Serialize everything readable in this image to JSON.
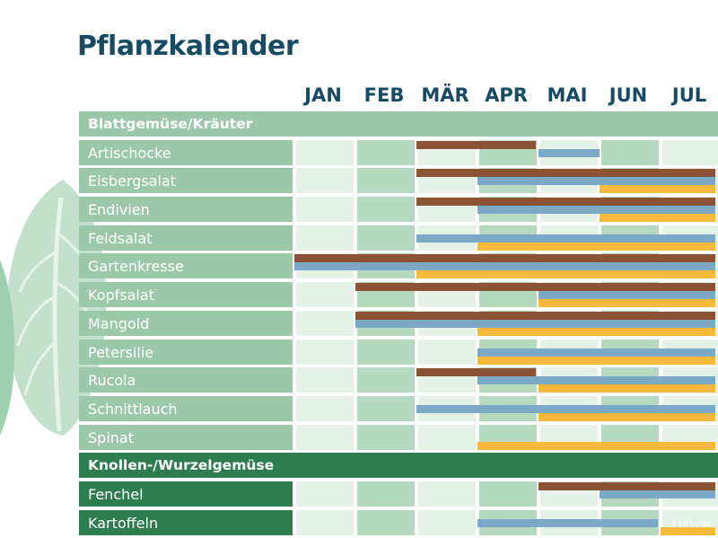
{
  "page": {
    "title": "Pflanzkalender",
    "watermark": "lidl.de"
  },
  "colors": {
    "sow": "#8b5236",
    "plant": "#7ba8c4",
    "harvest": "#f6b93b",
    "section_light": "#9cc8aa",
    "section_dark": "#2e7d4f",
    "label_light": "#9cc8aa",
    "label_dark": "#2e7d4f",
    "cell_light": "#e3f1e7",
    "cell_mid": "#b4d9bf",
    "title": "#174a63"
  },
  "chart_data": {
    "type": "table",
    "title": "Pflanzkalender",
    "months": [
      "JAN",
      "FEB",
      "MÄR",
      "APR",
      "MAI",
      "JUN",
      "JUL"
    ],
    "bar_kinds": [
      "sow",
      "plant",
      "harvest"
    ],
    "sections": [
      {
        "name": "Blattgemüse/Kräuter",
        "style": "light",
        "rows": [
          {
            "name": "Artischocke",
            "bars": [
              {
                "kind": "sow",
                "start": 3,
                "end": 4.95
              },
              {
                "kind": "plant",
                "start": 5,
                "end": 6
              }
            ]
          },
          {
            "name": "Eisbergsalat",
            "bars": [
              {
                "kind": "sow",
                "start": 3,
                "end": 7.9
              },
              {
                "kind": "plant",
                "start": 4,
                "end": 7.9
              },
              {
                "kind": "harvest",
                "start": 6,
                "end": 7.9
              }
            ]
          },
          {
            "name": "Endivien",
            "bars": [
              {
                "kind": "sow",
                "start": 3,
                "end": 7.9
              },
              {
                "kind": "plant",
                "start": 4,
                "end": 7.9
              },
              {
                "kind": "harvest",
                "start": 6,
                "end": 7.9
              }
            ]
          },
          {
            "name": "Feldsalat",
            "bars": [
              {
                "kind": "plant",
                "start": 3,
                "end": 7.9
              },
              {
                "kind": "harvest",
                "start": 4,
                "end": 7.9
              }
            ]
          },
          {
            "name": "Gartenkresse",
            "bars": [
              {
                "kind": "sow",
                "start": 1,
                "end": 7.9
              },
              {
                "kind": "plant",
                "start": 1,
                "end": 7.9
              },
              {
                "kind": "harvest",
                "start": 3,
                "end": 7.9
              }
            ]
          },
          {
            "name": "Kopfsalat",
            "bars": [
              {
                "kind": "sow",
                "start": 2,
                "end": 7.9
              },
              {
                "kind": "plant",
                "start": 5,
                "end": 7.9
              },
              {
                "kind": "harvest",
                "start": 5,
                "end": 7.9
              }
            ]
          },
          {
            "name": "Mangold",
            "bars": [
              {
                "kind": "sow",
                "start": 2,
                "end": 7.9
              },
              {
                "kind": "plant",
                "start": 2,
                "end": 7.9
              },
              {
                "kind": "harvest",
                "start": 4,
                "end": 7.9
              }
            ]
          },
          {
            "name": "Petersilie",
            "bars": [
              {
                "kind": "plant",
                "start": 4,
                "end": 7.9
              },
              {
                "kind": "harvest",
                "start": 4,
                "end": 7.9
              }
            ]
          },
          {
            "name": "Rucola",
            "bars": [
              {
                "kind": "sow",
                "start": 3,
                "end": 4.95
              },
              {
                "kind": "plant",
                "start": 4,
                "end": 7.9
              },
              {
                "kind": "harvest",
                "start": 5,
                "end": 7.9
              }
            ]
          },
          {
            "name": "Schnittlauch",
            "bars": [
              {
                "kind": "plant",
                "start": 3,
                "end": 7.9
              },
              {
                "kind": "harvest",
                "start": 5,
                "end": 7.9
              }
            ]
          },
          {
            "name": "Spinat",
            "bars": [
              {
                "kind": "harvest",
                "start": 4,
                "end": 7.9
              }
            ]
          }
        ]
      },
      {
        "name": "Knollen-/Wurzelgemüse",
        "style": "dark",
        "rows": [
          {
            "name": "Fenchel",
            "bars": [
              {
                "kind": "sow",
                "start": 5,
                "end": 7.9
              },
              {
                "kind": "plant",
                "start": 6,
                "end": 7.9
              }
            ]
          },
          {
            "name": "Kartoffeln",
            "bars": [
              {
                "kind": "plant",
                "start": 4,
                "end": 6.95
              },
              {
                "kind": "harvest",
                "start": 7,
                "end": 7.9
              }
            ]
          }
        ]
      }
    ]
  }
}
